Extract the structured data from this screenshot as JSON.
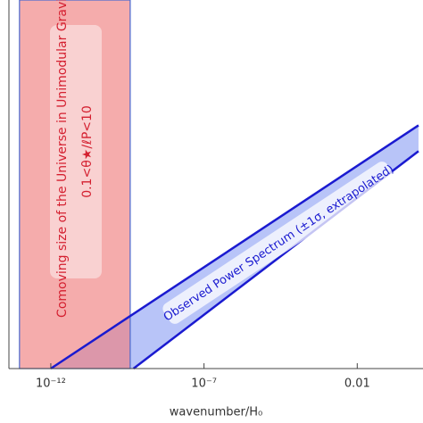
{
  "chart_data": {
    "type": "line",
    "x_label": "wavenumber/H₀",
    "log_x": true,
    "xlim": [
      4.3e-14,
      1.4
    ],
    "xticks": [
      {
        "value": 1e-12,
        "label": "10⁻¹²"
      },
      {
        "value": 1e-07,
        "label": "10⁻⁷"
      },
      0.01
    ],
    "ylim": [
      0,
      1
    ],
    "band_color": "#b8c4f8",
    "series": [
      {
        "color": "#1a1ad0",
        "x": [
          1e-12,
          1
        ],
        "values": [
          0,
          0.66
        ]
      },
      {
        "color": "#1a1ad0",
        "x": [
          5e-10,
          1
        ],
        "values": [
          0,
          0.59
        ]
      }
    ],
    "band_label": "Observed Power Spectrum (±1σ, extrapolated)",
    "shade": {
      "x": [
        9.5e-14,
        3.9e-10
      ],
      "color": "#f08080",
      "edge": "#4a6ad0",
      "labels": [
        "Comoving size of the Universe in Unimodular Gravity",
        "0.1<θ★/ℓP<10"
      ],
      "label_color": "#d42030"
    }
  }
}
